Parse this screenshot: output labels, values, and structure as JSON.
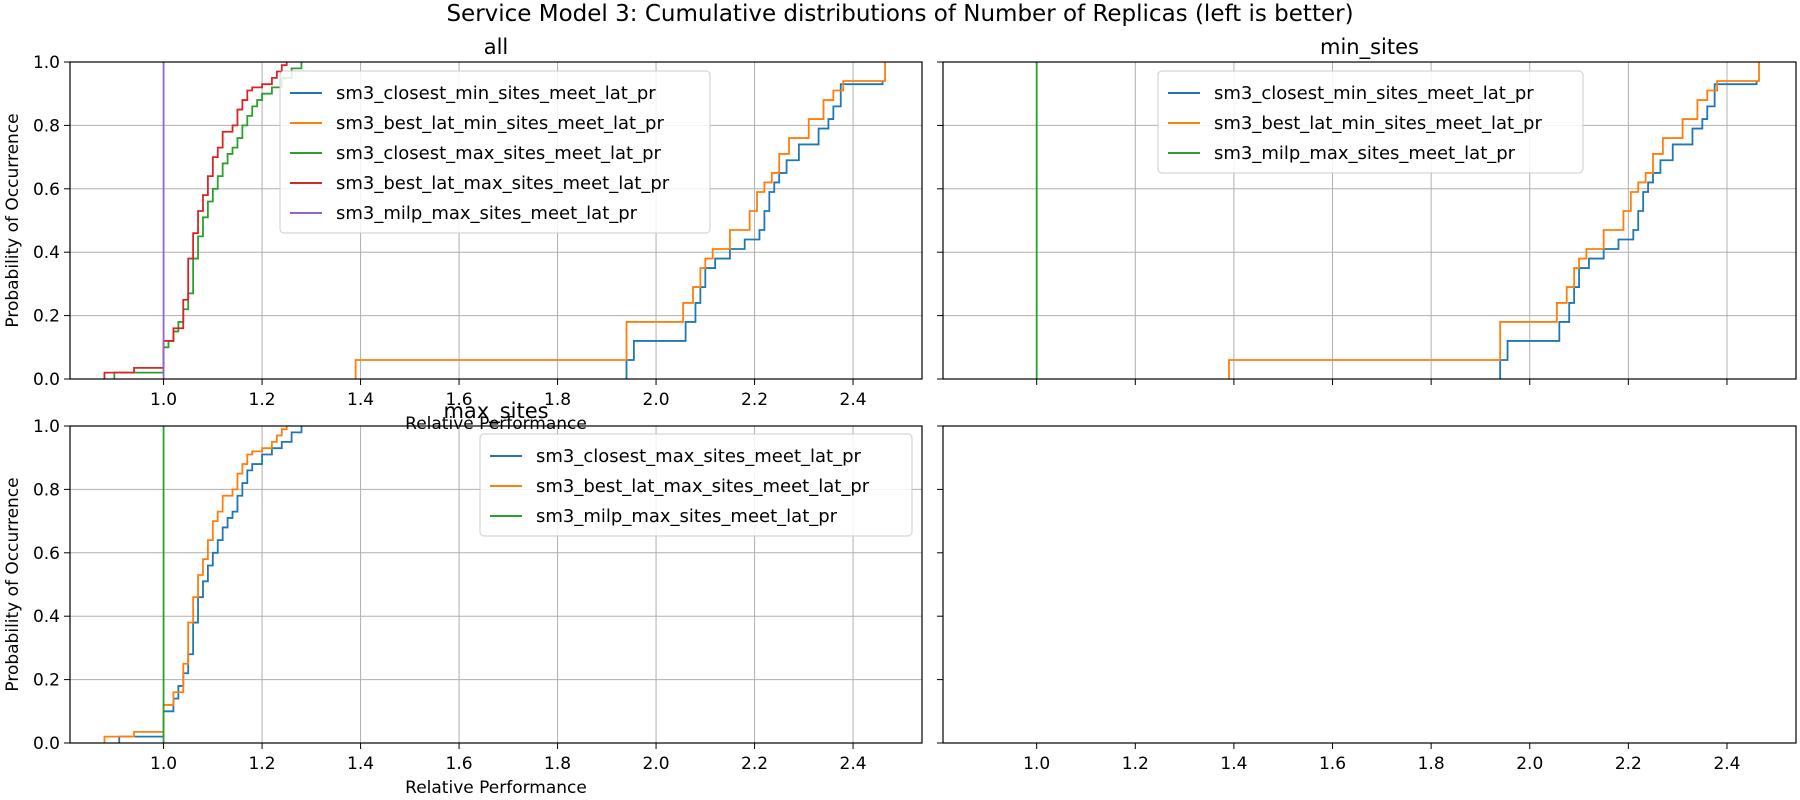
{
  "figure": {
    "title": "Service Model 3: Cumulative distributions of Number of Replicas (left is better)"
  },
  "colors": {
    "blue": "#1f77b4",
    "orange": "#ff7f0e",
    "green": "#2ca02c",
    "red": "#d62728",
    "purple": "#9467bd",
    "grid": "#b0b0b0",
    "axis": "#000000"
  },
  "chart_data": [
    {
      "panel": "all",
      "type": "line",
      "title": "all",
      "xlabel": "Relative Performance",
      "ylabel": "Probability of Occurrence",
      "xlim": [
        0.81,
        2.54
      ],
      "ylim": [
        0,
        1
      ],
      "xticks": [
        "1.0",
        "1.2",
        "1.4",
        "1.6",
        "1.8",
        "2.0",
        "2.2",
        "2.4"
      ],
      "yticks": [
        "0.0",
        "0.2",
        "0.4",
        "0.6",
        "0.8",
        "1.0"
      ],
      "grid": true,
      "legend_position": "upper center",
      "series": [
        {
          "name": "sm3_closest_min_sites_meet_lat_pr",
          "color": "blue",
          "x": [
            1.94,
            1.94,
            1.955,
            2.06,
            2.08,
            2.09,
            2.1,
            2.12,
            2.15,
            2.18,
            2.21,
            2.22,
            2.23,
            2.24,
            2.25,
            2.265,
            2.29,
            2.33,
            2.35,
            2.36,
            2.375,
            2.46
          ],
          "y": [
            0.0,
            0.06,
            0.12,
            0.18,
            0.24,
            0.29,
            0.35,
            0.38,
            0.41,
            0.44,
            0.47,
            0.53,
            0.59,
            0.62,
            0.65,
            0.69,
            0.74,
            0.79,
            0.82,
            0.86,
            0.93,
            0.94
          ]
        },
        {
          "name": "sm3_best_lat_min_sites_meet_lat_pr",
          "color": "orange",
          "x": [
            1.39,
            1.94,
            2.055,
            2.075,
            2.09,
            2.1,
            2.115,
            2.15,
            2.19,
            2.205,
            2.22,
            2.235,
            2.25,
            2.27,
            2.31,
            2.34,
            2.36,
            2.38,
            2.465
          ],
          "y": [
            0.06,
            0.18,
            0.24,
            0.29,
            0.35,
            0.38,
            0.41,
            0.47,
            0.53,
            0.59,
            0.62,
            0.65,
            0.71,
            0.76,
            0.82,
            0.88,
            0.91,
            0.94,
            1.0
          ]
        },
        {
          "name": "sm3_closest_max_sites_meet_lat_pr",
          "color": "green",
          "x": [
            0.9,
            1.0,
            1.01,
            1.02,
            1.03,
            1.04,
            1.05,
            1.06,
            1.07,
            1.08,
            1.09,
            1.1,
            1.11,
            1.12,
            1.13,
            1.14,
            1.15,
            1.16,
            1.17,
            1.18,
            1.19,
            1.2,
            1.22,
            1.24,
            1.26,
            1.28
          ],
          "y": [
            0.02,
            0.1,
            0.12,
            0.15,
            0.18,
            0.22,
            0.27,
            0.38,
            0.45,
            0.51,
            0.56,
            0.6,
            0.64,
            0.68,
            0.71,
            0.73,
            0.76,
            0.8,
            0.83,
            0.86,
            0.88,
            0.9,
            0.92,
            0.95,
            0.98,
            1.0
          ]
        },
        {
          "name": "sm3_best_lat_max_sites_meet_lat_pr",
          "color": "red",
          "x": [
            0.88,
            0.94,
            1.0,
            1.02,
            1.04,
            1.05,
            1.06,
            1.07,
            1.08,
            1.09,
            1.1,
            1.11,
            1.12,
            1.14,
            1.15,
            1.16,
            1.17,
            1.18,
            1.2,
            1.22,
            1.23,
            1.24,
            1.25
          ],
          "y": [
            0.02,
            0.035,
            0.12,
            0.16,
            0.25,
            0.38,
            0.46,
            0.53,
            0.58,
            0.64,
            0.7,
            0.73,
            0.78,
            0.8,
            0.85,
            0.88,
            0.91,
            0.92,
            0.93,
            0.95,
            0.97,
            0.99,
            1.0
          ]
        },
        {
          "name": "sm3_milp_max_sites_meet_lat_pr",
          "color": "purple",
          "x": [
            1.0,
            1.0
          ],
          "y": [
            0.0,
            1.0
          ]
        }
      ]
    },
    {
      "panel": "min_sites",
      "type": "line",
      "title": "min_sites",
      "xlabel": "",
      "ylabel": "",
      "xlim": [
        0.81,
        2.54
      ],
      "ylim": [
        0,
        1
      ],
      "xticks": [],
      "yticks": [],
      "grid": true,
      "legend_position": "upper center",
      "series": [
        {
          "name": "sm3_closest_min_sites_meet_lat_pr",
          "color": "blue",
          "x": [
            1.94,
            1.94,
            1.955,
            2.06,
            2.08,
            2.09,
            2.1,
            2.12,
            2.15,
            2.18,
            2.21,
            2.22,
            2.23,
            2.24,
            2.25,
            2.265,
            2.29,
            2.33,
            2.35,
            2.36,
            2.375,
            2.46
          ],
          "y": [
            0.0,
            0.06,
            0.12,
            0.18,
            0.24,
            0.29,
            0.35,
            0.38,
            0.41,
            0.44,
            0.47,
            0.53,
            0.59,
            0.62,
            0.65,
            0.69,
            0.74,
            0.79,
            0.82,
            0.86,
            0.93,
            0.94
          ]
        },
        {
          "name": "sm3_best_lat_min_sites_meet_lat_pr",
          "color": "orange",
          "x": [
            1.39,
            1.94,
            2.055,
            2.075,
            2.09,
            2.1,
            2.115,
            2.15,
            2.19,
            2.205,
            2.22,
            2.235,
            2.25,
            2.27,
            2.31,
            2.34,
            2.36,
            2.38,
            2.465
          ],
          "y": [
            0.06,
            0.18,
            0.24,
            0.29,
            0.35,
            0.38,
            0.41,
            0.47,
            0.53,
            0.59,
            0.62,
            0.65,
            0.71,
            0.76,
            0.82,
            0.88,
            0.91,
            0.94,
            1.0
          ]
        },
        {
          "name": "sm3_milp_max_sites_meet_lat_pr",
          "color": "green",
          "x": [
            1.0,
            1.0
          ],
          "y": [
            0.0,
            1.0
          ]
        }
      ]
    },
    {
      "panel": "max_sites",
      "type": "line",
      "title": "max_sites",
      "xlabel": "Relative Performance",
      "ylabel": "Probability of Occurrence",
      "xlim": [
        0.81,
        2.54
      ],
      "ylim": [
        0,
        1
      ],
      "xticks": [
        "1.0",
        "1.2",
        "1.4",
        "1.6",
        "1.8",
        "2.0",
        "2.2",
        "2.4"
      ],
      "yticks": [
        "0.0",
        "0.2",
        "0.4",
        "0.6",
        "0.8",
        "1.0"
      ],
      "grid": true,
      "legend_position": "upper right",
      "series": [
        {
          "name": "sm3_closest_max_sites_meet_lat_pr",
          "color": "blue",
          "x": [
            0.91,
            1.0,
            1.02,
            1.03,
            1.04,
            1.05,
            1.06,
            1.07,
            1.08,
            1.09,
            1.1,
            1.11,
            1.12,
            1.13,
            1.14,
            1.15,
            1.16,
            1.17,
            1.18,
            1.2,
            1.22,
            1.24,
            1.26,
            1.28
          ],
          "y": [
            0.02,
            0.1,
            0.14,
            0.18,
            0.22,
            0.28,
            0.38,
            0.46,
            0.51,
            0.56,
            0.6,
            0.64,
            0.68,
            0.71,
            0.73,
            0.78,
            0.82,
            0.86,
            0.88,
            0.91,
            0.93,
            0.95,
            0.98,
            1.0
          ]
        },
        {
          "name": "sm3_best_lat_max_sites_meet_lat_pr",
          "color": "orange",
          "x": [
            0.88,
            0.94,
            1.0,
            1.02,
            1.04,
            1.05,
            1.06,
            1.07,
            1.08,
            1.09,
            1.1,
            1.11,
            1.12,
            1.14,
            1.15,
            1.16,
            1.17,
            1.18,
            1.2,
            1.22,
            1.23,
            1.24,
            1.25
          ],
          "y": [
            0.02,
            0.035,
            0.12,
            0.16,
            0.25,
            0.38,
            0.46,
            0.53,
            0.58,
            0.64,
            0.7,
            0.73,
            0.78,
            0.8,
            0.85,
            0.88,
            0.91,
            0.92,
            0.93,
            0.95,
            0.97,
            0.99,
            1.0
          ]
        },
        {
          "name": "sm3_milp_max_sites_meet_lat_pr",
          "color": "green",
          "x": [
            1.0,
            1.0
          ],
          "y": [
            0.0,
            1.0
          ]
        }
      ]
    },
    {
      "panel": "empty",
      "type": "line",
      "title": "",
      "xlabel": "",
      "ylabel": "",
      "xlim": [
        0.81,
        2.54
      ],
      "ylim": [
        0,
        1
      ],
      "xticks": [
        "1.0",
        "1.2",
        "1.4",
        "1.6",
        "1.8",
        "2.0",
        "2.2",
        "2.4"
      ],
      "yticks": [],
      "grid": false,
      "legend_position": "none",
      "series": []
    }
  ]
}
